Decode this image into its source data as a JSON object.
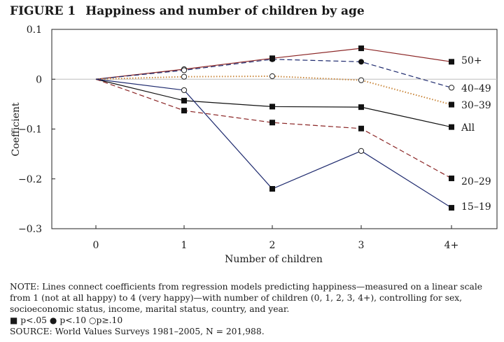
{
  "figure": {
    "label": "FIGURE 1",
    "title": "Happiness and number of children by age"
  },
  "chart_data": {
    "type": "line",
    "title": "Happiness and number of children by age",
    "xlabel": "Number of children",
    "ylabel": "Coefficient",
    "categories": [
      "0",
      "1",
      "2",
      "3",
      "4+"
    ],
    "yticks": [
      "0.1",
      "0",
      "−0.1",
      "−0.2",
      "−0.3"
    ],
    "ytick_values": [
      0.1,
      0,
      -0.1,
      -0.2,
      -0.3
    ],
    "ylim": [
      -0.3,
      0.1
    ],
    "grid": false,
    "zero_line": true,
    "legend": "end-of-line labels",
    "series": [
      {
        "name": "50+",
        "values": [
          0,
          0.02,
          0.042,
          0.062,
          0.035
        ],
        "markers": [
          "none",
          "open",
          "square",
          "square",
          "square"
        ],
        "color": "#8b2525",
        "dash": "solid"
      },
      {
        "name": "40–49",
        "values": [
          0,
          0.018,
          0.04,
          0.035,
          -0.017
        ],
        "markers": [
          "none",
          "open",
          "filled",
          "filled",
          "open"
        ],
        "color": "#1e2a6e",
        "dash": "dashed"
      },
      {
        "name": "30–39",
        "values": [
          0,
          0.005,
          0.006,
          -0.002,
          -0.051
        ],
        "markers": [
          "none",
          "open",
          "open",
          "open",
          "square"
        ],
        "color": "#c9863a",
        "dash": "dotted"
      },
      {
        "name": "All",
        "values": [
          0,
          -0.043,
          -0.055,
          -0.056,
          -0.096
        ],
        "markers": [
          "none",
          "square",
          "square",
          "square",
          "square"
        ],
        "color": "#111111",
        "dash": "solid"
      },
      {
        "name": "20–29",
        "values": [
          0,
          -0.063,
          -0.087,
          -0.099,
          -0.199
        ],
        "markers": [
          "none",
          "square",
          "square",
          "square",
          "square"
        ],
        "color": "#8b2525",
        "dash": "dashed"
      },
      {
        "name": "15–19",
        "values": [
          0,
          -0.022,
          -0.22,
          -0.144,
          -0.258
        ],
        "markers": [
          "none",
          "open",
          "square",
          "open",
          "square"
        ],
        "color": "#1e2a6e",
        "dash": "solid"
      }
    ]
  },
  "note": {
    "text": "NOTE: Lines connect coefficients from regression models predicting happiness—measured on a linear scale from 1 (not at all happy) to 4 (very happy)—with number of children (0, 1, 2, 3, 4+), controlling for sex, socioeconomic status, income, marital status, country, and year.",
    "legend_square": "■",
    "legend_p05": "p<.05",
    "legend_filled": "●",
    "legend_p10": "p<.10",
    "legend_open": "○",
    "legend_pge10": "p≥.10",
    "source": "SOURCE: World Values Surveys 1981–2005, N = 201,988."
  }
}
